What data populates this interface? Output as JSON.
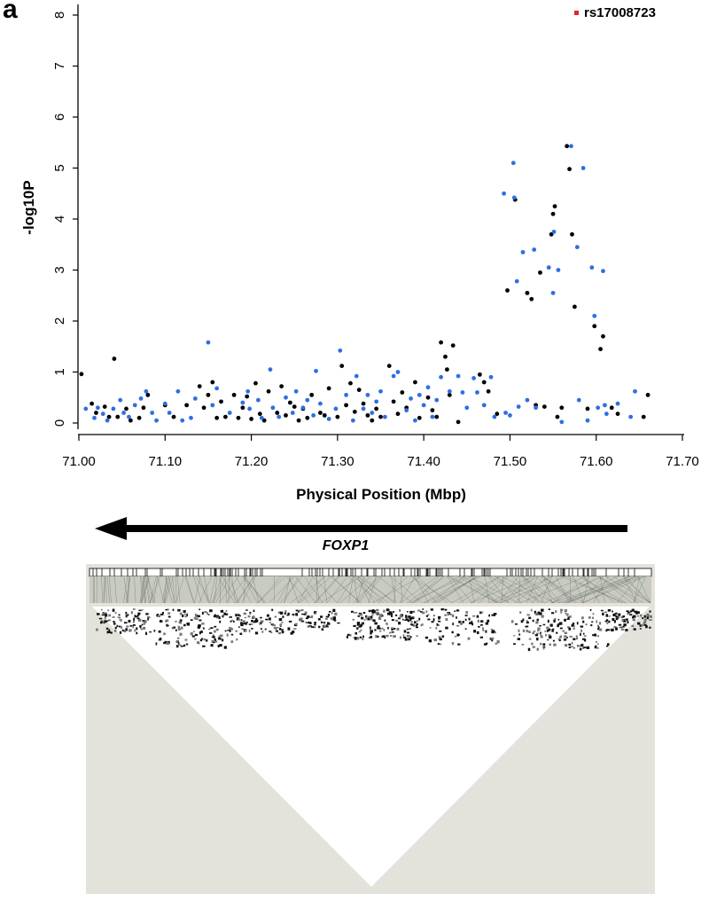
{
  "figure": {
    "panel_label": "a",
    "legend": {
      "label": "rs17008723",
      "color": "#e8212b"
    },
    "gene": {
      "name": "FOXP1",
      "direction": "left"
    },
    "colors": {
      "black_points": "#000000",
      "blue_points": "#2f6fe0",
      "ld_background": "#e3e3dc",
      "axis": "#000000"
    }
  },
  "chart_data": {
    "type": "scatter",
    "title": "",
    "xlabel": "Physical Position (Mbp)",
    "ylabel": "-log10P",
    "xlim": [
      71.0,
      71.7
    ],
    "ylim": [
      0,
      8
    ],
    "xticks": [
      "71.00",
      "71.10",
      "71.20",
      "71.30",
      "71.40",
      "71.50",
      "71.60",
      "71.70"
    ],
    "yticks": [
      "0",
      "1",
      "2",
      "3",
      "4",
      "5",
      "6",
      "7",
      "8"
    ],
    "grid": false,
    "legend_position": "top-right",
    "annotations": [
      {
        "label": "rs17008723",
        "marker_color": "#e8212b"
      }
    ],
    "series": [
      {
        "name": "black",
        "color": "#000000",
        "points": [
          [
            71.003,
            0.96
          ],
          [
            71.015,
            0.38
          ],
          [
            71.02,
            0.2
          ],
          [
            71.03,
            0.32
          ],
          [
            71.035,
            0.12
          ],
          [
            71.041,
            1.26
          ],
          [
            71.045,
            0.12
          ],
          [
            71.055,
            0.28
          ],
          [
            71.06,
            0.05
          ],
          [
            71.07,
            0.1
          ],
          [
            71.075,
            0.3
          ],
          [
            71.08,
            0.55
          ],
          [
            71.1,
            0.35
          ],
          [
            71.11,
            0.12
          ],
          [
            71.125,
            0.35
          ],
          [
            71.14,
            0.72
          ],
          [
            71.145,
            0.3
          ],
          [
            71.15,
            0.55
          ],
          [
            71.155,
            0.8
          ],
          [
            71.16,
            0.1
          ],
          [
            71.165,
            0.42
          ],
          [
            71.17,
            0.12
          ],
          [
            71.18,
            0.55
          ],
          [
            71.185,
            0.1
          ],
          [
            71.19,
            0.3
          ],
          [
            71.195,
            0.52
          ],
          [
            71.2,
            0.08
          ],
          [
            71.205,
            0.78
          ],
          [
            71.21,
            0.18
          ],
          [
            71.215,
            0.05
          ],
          [
            71.22,
            0.62
          ],
          [
            71.23,
            0.2
          ],
          [
            71.235,
            0.72
          ],
          [
            71.24,
            0.15
          ],
          [
            71.245,
            0.4
          ],
          [
            71.25,
            0.32
          ],
          [
            71.255,
            0.05
          ],
          [
            71.26,
            0.28
          ],
          [
            71.265,
            0.1
          ],
          [
            71.27,
            0.55
          ],
          [
            71.28,
            0.2
          ],
          [
            71.285,
            0.15
          ],
          [
            71.29,
            0.68
          ],
          [
            71.3,
            0.12
          ],
          [
            71.305,
            1.12
          ],
          [
            71.31,
            0.35
          ],
          [
            71.315,
            0.78
          ],
          [
            71.32,
            0.22
          ],
          [
            71.325,
            0.65
          ],
          [
            71.33,
            0.38
          ],
          [
            71.335,
            0.15
          ],
          [
            71.34,
            0.05
          ],
          [
            71.345,
            0.28
          ],
          [
            71.35,
            0.12
          ],
          [
            71.36,
            1.12
          ],
          [
            71.365,
            0.42
          ],
          [
            71.37,
            0.18
          ],
          [
            71.375,
            0.6
          ],
          [
            71.38,
            0.3
          ],
          [
            71.39,
            0.8
          ],
          [
            71.395,
            0.1
          ],
          [
            71.405,
            0.5
          ],
          [
            71.41,
            0.25
          ],
          [
            71.415,
            0.12
          ],
          [
            71.42,
            1.58
          ],
          [
            71.425,
            1.3
          ],
          [
            71.427,
            1.05
          ],
          [
            71.43,
            0.55
          ],
          [
            71.434,
            1.52
          ],
          [
            71.44,
            0.02
          ],
          [
            71.465,
            0.95
          ],
          [
            71.47,
            0.8
          ],
          [
            71.475,
            0.62
          ],
          [
            71.485,
            0.18
          ],
          [
            71.497,
            2.6
          ],
          [
            71.506,
            4.38
          ],
          [
            71.52,
            2.55
          ],
          [
            71.525,
            2.43
          ],
          [
            71.53,
            0.35
          ],
          [
            71.535,
            2.95
          ],
          [
            71.54,
            0.32
          ],
          [
            71.548,
            3.7
          ],
          [
            71.55,
            4.1
          ],
          [
            71.552,
            4.25
          ],
          [
            71.555,
            0.12
          ],
          [
            71.56,
            0.3
          ],
          [
            71.566,
            5.43
          ],
          [
            71.569,
            4.98
          ],
          [
            71.572,
            3.7
          ],
          [
            71.575,
            2.28
          ],
          [
            71.59,
            0.28
          ],
          [
            71.598,
            1.9
          ],
          [
            71.605,
            1.45
          ],
          [
            71.608,
            1.7
          ],
          [
            71.618,
            0.3
          ],
          [
            71.625,
            0.18
          ],
          [
            71.655,
            0.12
          ],
          [
            71.66,
            0.55
          ]
        ]
      },
      {
        "name": "blue",
        "color": "#2f6fe0",
        "points": [
          [
            71.008,
            0.28
          ],
          [
            71.018,
            0.1
          ],
          [
            71.022,
            0.3
          ],
          [
            71.028,
            0.18
          ],
          [
            71.033,
            0.05
          ],
          [
            71.04,
            0.28
          ],
          [
            71.048,
            0.45
          ],
          [
            71.052,
            0.2
          ],
          [
            71.058,
            0.12
          ],
          [
            71.065,
            0.35
          ],
          [
            71.072,
            0.48
          ],
          [
            71.078,
            0.62
          ],
          [
            71.085,
            0.2
          ],
          [
            71.09,
            0.05
          ],
          [
            71.1,
            0.38
          ],
          [
            71.105,
            0.2
          ],
          [
            71.115,
            0.62
          ],
          [
            71.12,
            0.05
          ],
          [
            71.13,
            0.1
          ],
          [
            71.135,
            0.48
          ],
          [
            71.15,
            1.58
          ],
          [
            71.155,
            0.35
          ],
          [
            71.16,
            0.68
          ],
          [
            71.175,
            0.2
          ],
          [
            71.19,
            0.4
          ],
          [
            71.196,
            0.62
          ],
          [
            71.198,
            0.28
          ],
          [
            71.208,
            0.45
          ],
          [
            71.212,
            0.1
          ],
          [
            71.222,
            1.05
          ],
          [
            71.225,
            0.3
          ],
          [
            71.232,
            0.12
          ],
          [
            71.24,
            0.5
          ],
          [
            71.248,
            0.2
          ],
          [
            71.252,
            0.62
          ],
          [
            71.26,
            0.3
          ],
          [
            71.265,
            0.45
          ],
          [
            71.272,
            0.15
          ],
          [
            71.275,
            1.02
          ],
          [
            71.28,
            0.38
          ],
          [
            71.29,
            0.08
          ],
          [
            71.298,
            0.28
          ],
          [
            71.303,
            1.42
          ],
          [
            71.31,
            0.55
          ],
          [
            71.318,
            0.05
          ],
          [
            71.322,
            0.92
          ],
          [
            71.33,
            0.28
          ],
          [
            71.335,
            0.55
          ],
          [
            71.34,
            0.2
          ],
          [
            71.345,
            0.42
          ],
          [
            71.35,
            0.62
          ],
          [
            71.355,
            0.12
          ],
          [
            71.365,
            0.92
          ],
          [
            71.37,
            1.0
          ],
          [
            71.38,
            0.25
          ],
          [
            71.385,
            0.48
          ],
          [
            71.39,
            0.05
          ],
          [
            71.395,
            0.55
          ],
          [
            71.4,
            0.35
          ],
          [
            71.405,
            0.7
          ],
          [
            71.41,
            0.12
          ],
          [
            71.415,
            0.45
          ],
          [
            71.42,
            0.9
          ],
          [
            71.43,
            0.62
          ],
          [
            71.44,
            0.92
          ],
          [
            71.445,
            0.6
          ],
          [
            71.45,
            0.3
          ],
          [
            71.458,
            0.88
          ],
          [
            71.462,
            0.6
          ],
          [
            71.47,
            0.35
          ],
          [
            71.478,
            0.9
          ],
          [
            71.482,
            0.12
          ],
          [
            71.493,
            4.5
          ],
          [
            71.495,
            0.2
          ],
          [
            71.5,
            0.15
          ],
          [
            71.504,
            5.1
          ],
          [
            71.505,
            4.42
          ],
          [
            71.508,
            2.78
          ],
          [
            71.51,
            0.32
          ],
          [
            71.515,
            3.35
          ],
          [
            71.52,
            0.45
          ],
          [
            71.528,
            3.4
          ],
          [
            71.53,
            0.3
          ],
          [
            71.545,
            3.05
          ],
          [
            71.55,
            2.55
          ],
          [
            71.551,
            3.75
          ],
          [
            71.556,
            3.0
          ],
          [
            71.56,
            0.02
          ],
          [
            71.571,
            5.43
          ],
          [
            71.578,
            3.45
          ],
          [
            71.58,
            0.45
          ],
          [
            71.585,
            5.0
          ],
          [
            71.59,
            0.05
          ],
          [
            71.595,
            3.05
          ],
          [
            71.598,
            2.1
          ],
          [
            71.602,
            0.3
          ],
          [
            71.608,
            2.98
          ],
          [
            71.61,
            0.35
          ],
          [
            71.612,
            0.18
          ],
          [
            71.625,
            0.38
          ],
          [
            71.64,
            0.12
          ],
          [
            71.645,
            0.62
          ]
        ]
      },
      {
        "name": "rs17008723",
        "color": "#e8212b",
        "points": []
      }
    ]
  }
}
